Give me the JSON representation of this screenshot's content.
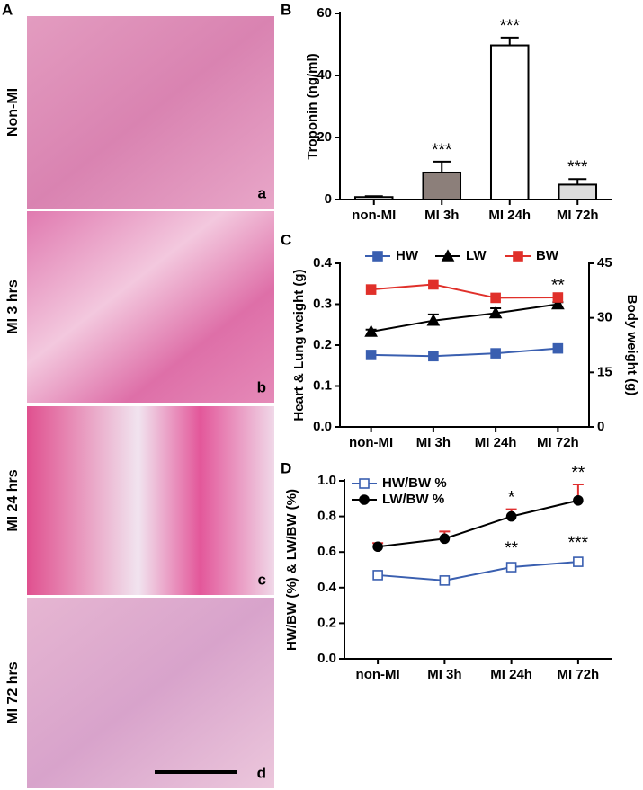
{
  "panel_a": {
    "label": "A",
    "rows": [
      {
        "title": "Non-MI",
        "tag": "a"
      },
      {
        "title": "MI 3 hrs",
        "tag": "b"
      },
      {
        "title": "MI 24 hrs",
        "tag": "c"
      },
      {
        "title": "MI 72 hrs",
        "tag": "d"
      }
    ]
  },
  "chart_data": [
    {
      "panel": "B",
      "type": "bar",
      "ylabel": "Troponin (ng/ml)",
      "categories": [
        "non-MI",
        "MI 3h",
        "MI 24h",
        "MI 72h"
      ],
      "values": [
        0.8,
        8.7,
        49.7,
        4.8
      ],
      "errors": [
        0.3,
        3.5,
        2.5,
        1.8
      ],
      "colors": [
        "#ffffff",
        "#8c7f7a",
        "#ffffff",
        "#dddddd"
      ],
      "significance": [
        null,
        "***",
        "***",
        "***"
      ],
      "ylim": [
        0,
        60
      ],
      "yticks": [
        0,
        20,
        40,
        60
      ]
    },
    {
      "panel": "C",
      "type": "line",
      "ylabel": "Heart & Lung weight (g)",
      "y2label": "Body weight (g)",
      "categories": [
        "non-MI",
        "MI 3h",
        "MI 24h",
        "MI 72h"
      ],
      "legend": "top",
      "series": [
        {
          "name": "HW",
          "color": "#3a5fb0",
          "marker": "square",
          "filled": true,
          "values": [
            0.176,
            0.173,
            0.18,
            0.192
          ]
        },
        {
          "name": "LW",
          "color": "#000000",
          "marker": "triangle",
          "filled": true,
          "values": [
            0.233,
            0.26,
            0.278,
            0.3
          ],
          "errors": [
            0.005,
            0.015,
            0.012,
            0.005
          ],
          "significance": [
            null,
            null,
            null,
            "**"
          ]
        },
        {
          "name": "BW",
          "color": "#e0302a",
          "marker": "square",
          "filled": true,
          "axis": "y2",
          "values": [
            37.8,
            39.2,
            35.5,
            35.6
          ]
        }
      ],
      "ylim": [
        0,
        0.4
      ],
      "yticks": [
        {
          "value": 0,
          "label": "0.0"
        },
        0.1,
        0.2,
        0.3,
        0.4
      ],
      "y2lim": [
        0,
        45
      ],
      "y2ticks": [
        0,
        15,
        30,
        45
      ]
    },
    {
      "panel": "D",
      "type": "line",
      "ylabel": "HW/BW (%) & LW/BW (%)",
      "categories": [
        "non-MI",
        "MI 3h",
        "MI 24h",
        "MI 72h"
      ],
      "legend": "top-left",
      "series": [
        {
          "name": "HW/BW %",
          "color": "#3a5fb0",
          "marker": "square",
          "filled": false,
          "values": [
            0.47,
            0.44,
            0.515,
            0.545
          ],
          "significance": [
            null,
            null,
            "**",
            "***"
          ]
        },
        {
          "name": "LW/BW %",
          "color": "#000000",
          "marker": "circle",
          "filled": true,
          "error_color": "#e03030",
          "values": [
            0.63,
            0.675,
            0.8,
            0.89
          ],
          "errors": [
            0.02,
            0.04,
            0.04,
            0.09
          ],
          "significance": [
            null,
            null,
            "*",
            "**"
          ]
        }
      ],
      "ylim": [
        0,
        1.0
      ],
      "yticks": [
        {
          "value": 0,
          "label": "0.0"
        },
        0.2,
        0.4,
        0.6,
        0.8,
        {
          "value": 1.0,
          "label": "1.0"
        }
      ]
    }
  ]
}
